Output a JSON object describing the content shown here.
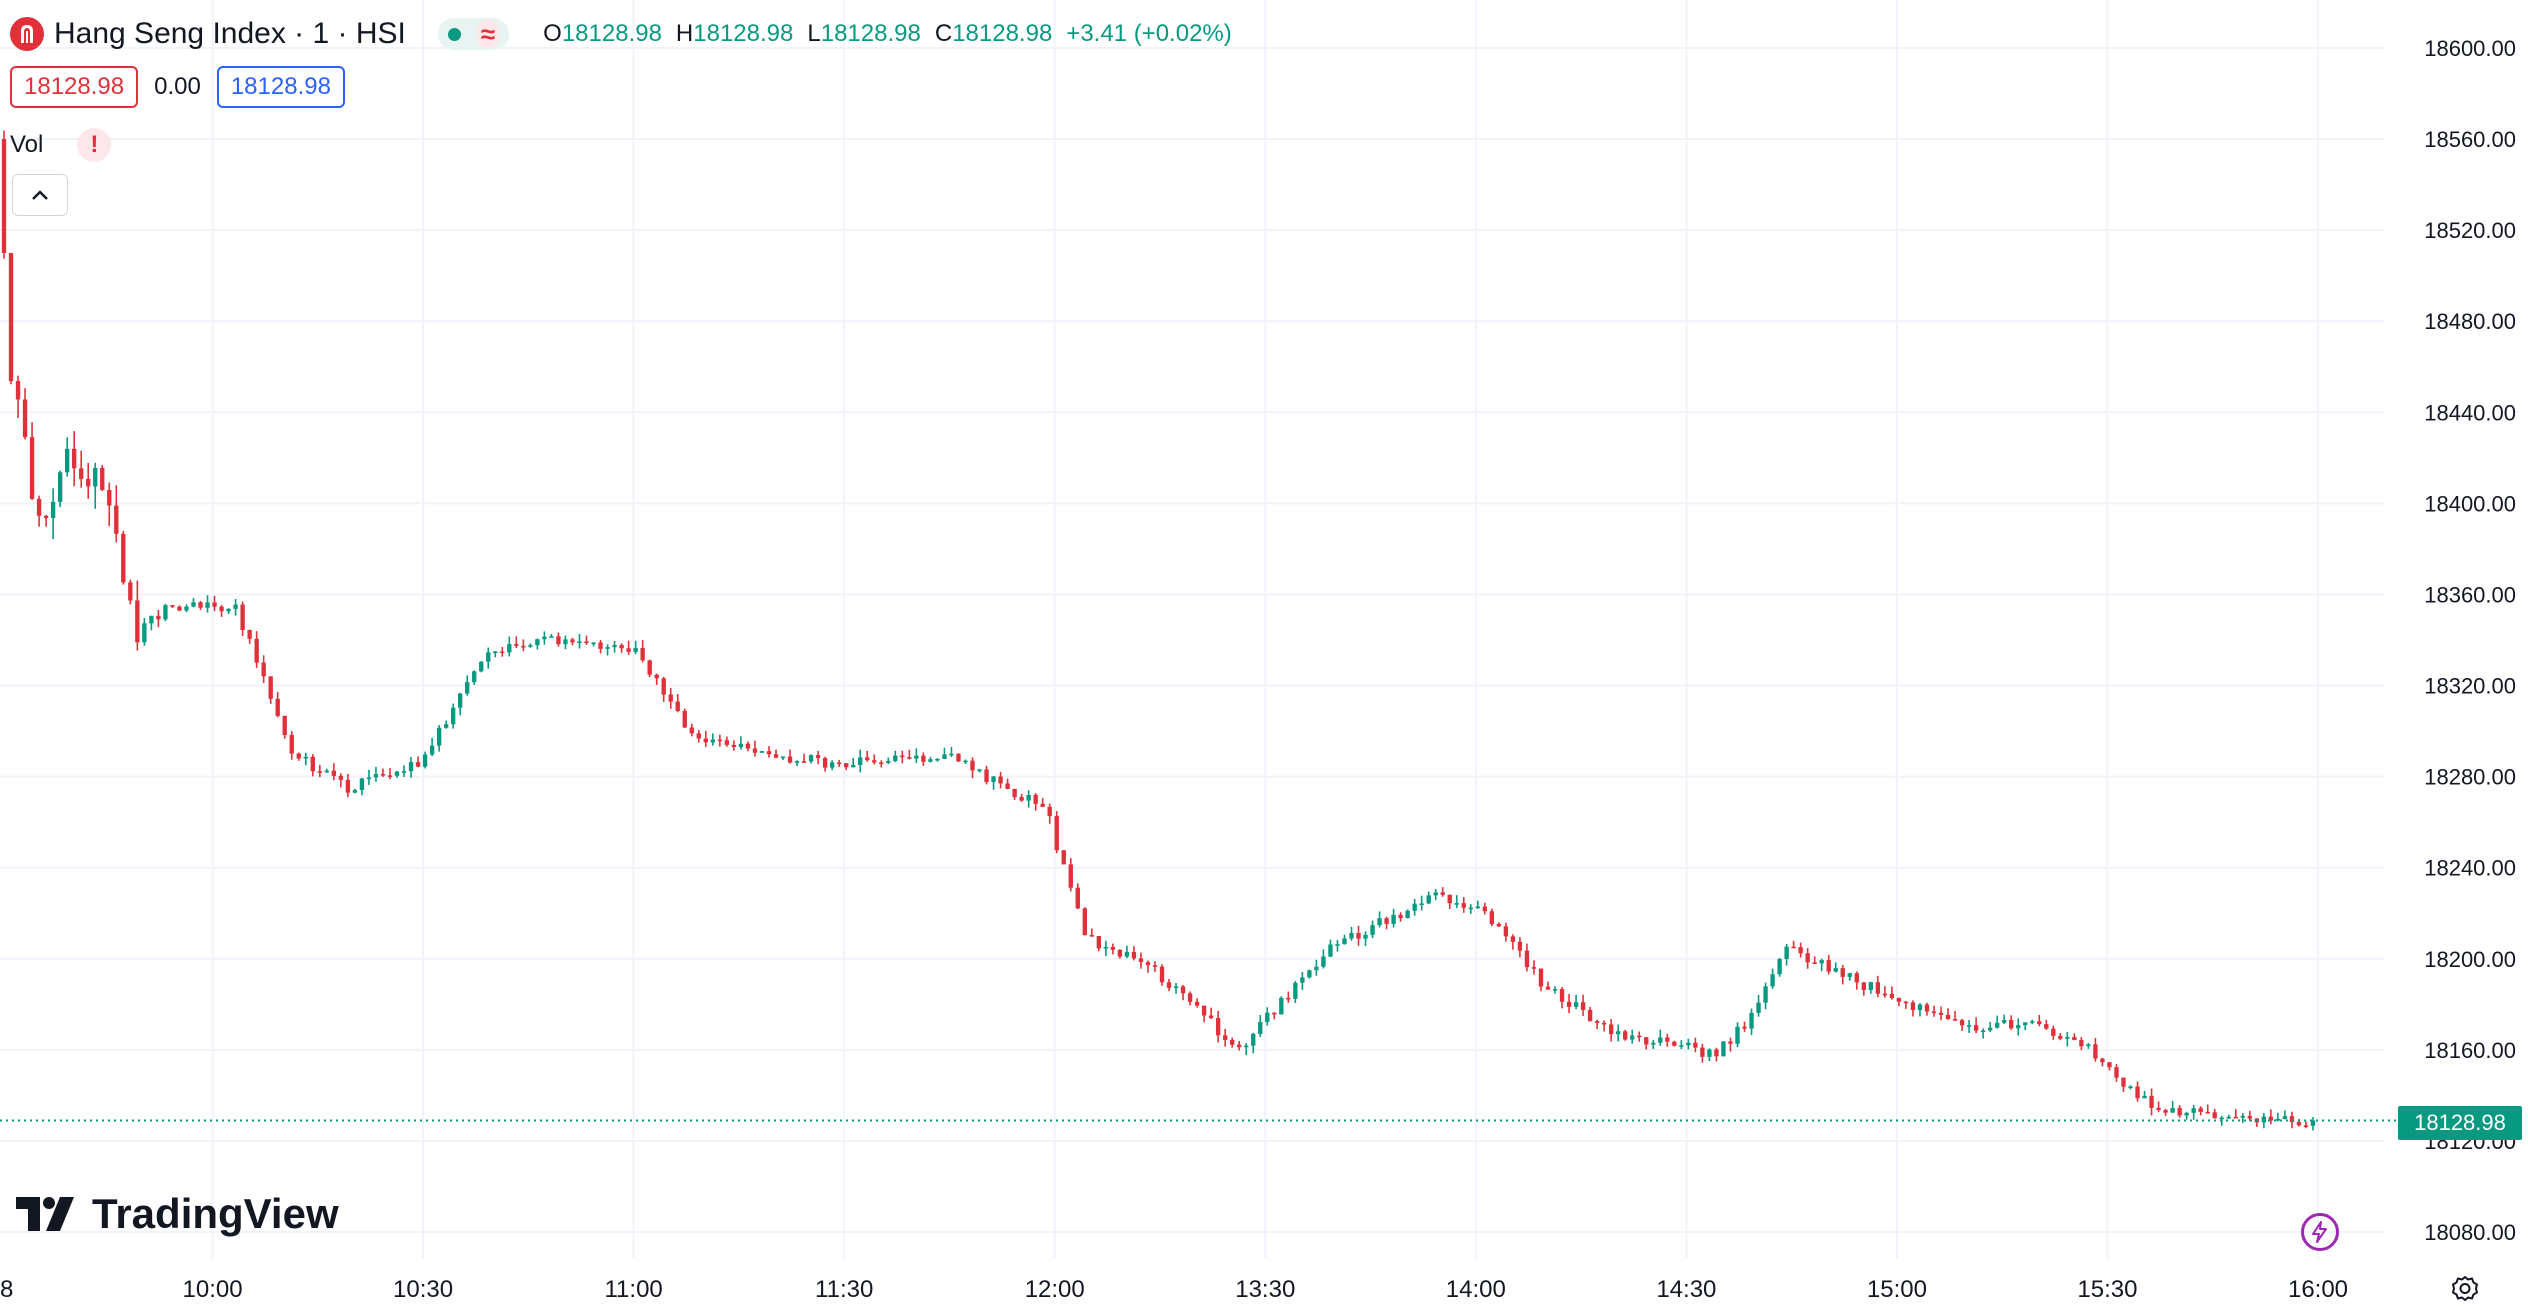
{
  "header": {
    "symbol_text": "Hang Seng Index · 1 · HSI",
    "status_icon": "market-open-dot",
    "delay_icon": "approx-wave",
    "ohlc": {
      "o_label": "O",
      "o_value": "18128.98",
      "h_label": "H",
      "h_value": "18128.98",
      "l_label": "L",
      "l_value": "18128.98",
      "c_label": "C",
      "c_value": "18128.98",
      "change": "+3.41 (+0.02%)"
    }
  },
  "trade": {
    "sell_price": "18128.98",
    "spread": "0.00",
    "buy_price": "18128.98"
  },
  "volume": {
    "label": "Vol",
    "warning_text": "!"
  },
  "brand": {
    "name": "TradingView"
  },
  "last_price_tag": "18128.98",
  "colors": {
    "up": "#089981",
    "down": "#e0313b",
    "grid": "#f0f3fa",
    "text": "#131722"
  },
  "chart_data": {
    "type": "candlestick",
    "title": "Hang Seng Index · 1 · HSI",
    "interval_minutes": 1,
    "x_axis_labels": [
      "8",
      "10:00",
      "10:30",
      "11:00",
      "11:30",
      "12:00",
      "13:30",
      "14:00",
      "14:30",
      "15:00",
      "15:30",
      "16:00"
    ],
    "y_axis_labels": [
      "18600.00",
      "18560.00",
      "18520.00",
      "18480.00",
      "18440.00",
      "18400.00",
      "18360.00",
      "18320.00",
      "18280.00",
      "18240.00",
      "18200.00",
      "18160.00",
      "18120.00",
      "18080.00"
    ],
    "ylim": [
      18071,
      18611
    ],
    "last_price": 18128.98,
    "grid": true,
    "segments": [
      {
        "start": "09:30",
        "end": "12:00"
      },
      {
        "start": "13:00",
        "end": "16:00"
      }
    ],
    "path_anchors": [
      {
        "t": "09:30",
        "price": 18560
      },
      {
        "t": "09:32",
        "price": 18460
      },
      {
        "t": "09:36",
        "price": 18390
      },
      {
        "t": "09:40",
        "price": 18420
      },
      {
        "t": "09:45",
        "price": 18410
      },
      {
        "t": "09:50",
        "price": 18345
      },
      {
        "t": "09:55",
        "price": 18355
      },
      {
        "t": "10:04",
        "price": 18355
      },
      {
        "t": "10:12",
        "price": 18290
      },
      {
        "t": "10:20",
        "price": 18275
      },
      {
        "t": "10:30",
        "price": 18285
      },
      {
        "t": "10:40",
        "price": 18335
      },
      {
        "t": "10:50",
        "price": 18340
      },
      {
        "t": "11:01",
        "price": 18335
      },
      {
        "t": "11:10",
        "price": 18295
      },
      {
        "t": "11:30",
        "price": 18285
      },
      {
        "t": "11:45",
        "price": 18290
      },
      {
        "t": "12:00",
        "price": 18265
      },
      {
        "t": "13:00",
        "price": 18260
      },
      {
        "t": "13:05",
        "price": 18210
      },
      {
        "t": "13:15",
        "price": 18195
      },
      {
        "t": "13:27",
        "price": 18160
      },
      {
        "t": "13:40",
        "price": 18205
      },
      {
        "t": "13:55",
        "price": 18228
      },
      {
        "t": "14:02",
        "price": 18220
      },
      {
        "t": "14:10",
        "price": 18190
      },
      {
        "t": "14:20",
        "price": 18168
      },
      {
        "t": "14:35",
        "price": 18158
      },
      {
        "t": "14:40",
        "price": 18175
      },
      {
        "t": "14:45",
        "price": 18205
      },
      {
        "t": "14:55",
        "price": 18190
      },
      {
        "t": "15:10",
        "price": 18170
      },
      {
        "t": "15:20",
        "price": 18172
      },
      {
        "t": "15:28",
        "price": 18160
      },
      {
        "t": "15:37",
        "price": 18135
      },
      {
        "t": "15:45",
        "price": 18132
      },
      {
        "t": "15:50",
        "price": 18130
      },
      {
        "t": "16:00",
        "price": 18128.98
      }
    ]
  }
}
